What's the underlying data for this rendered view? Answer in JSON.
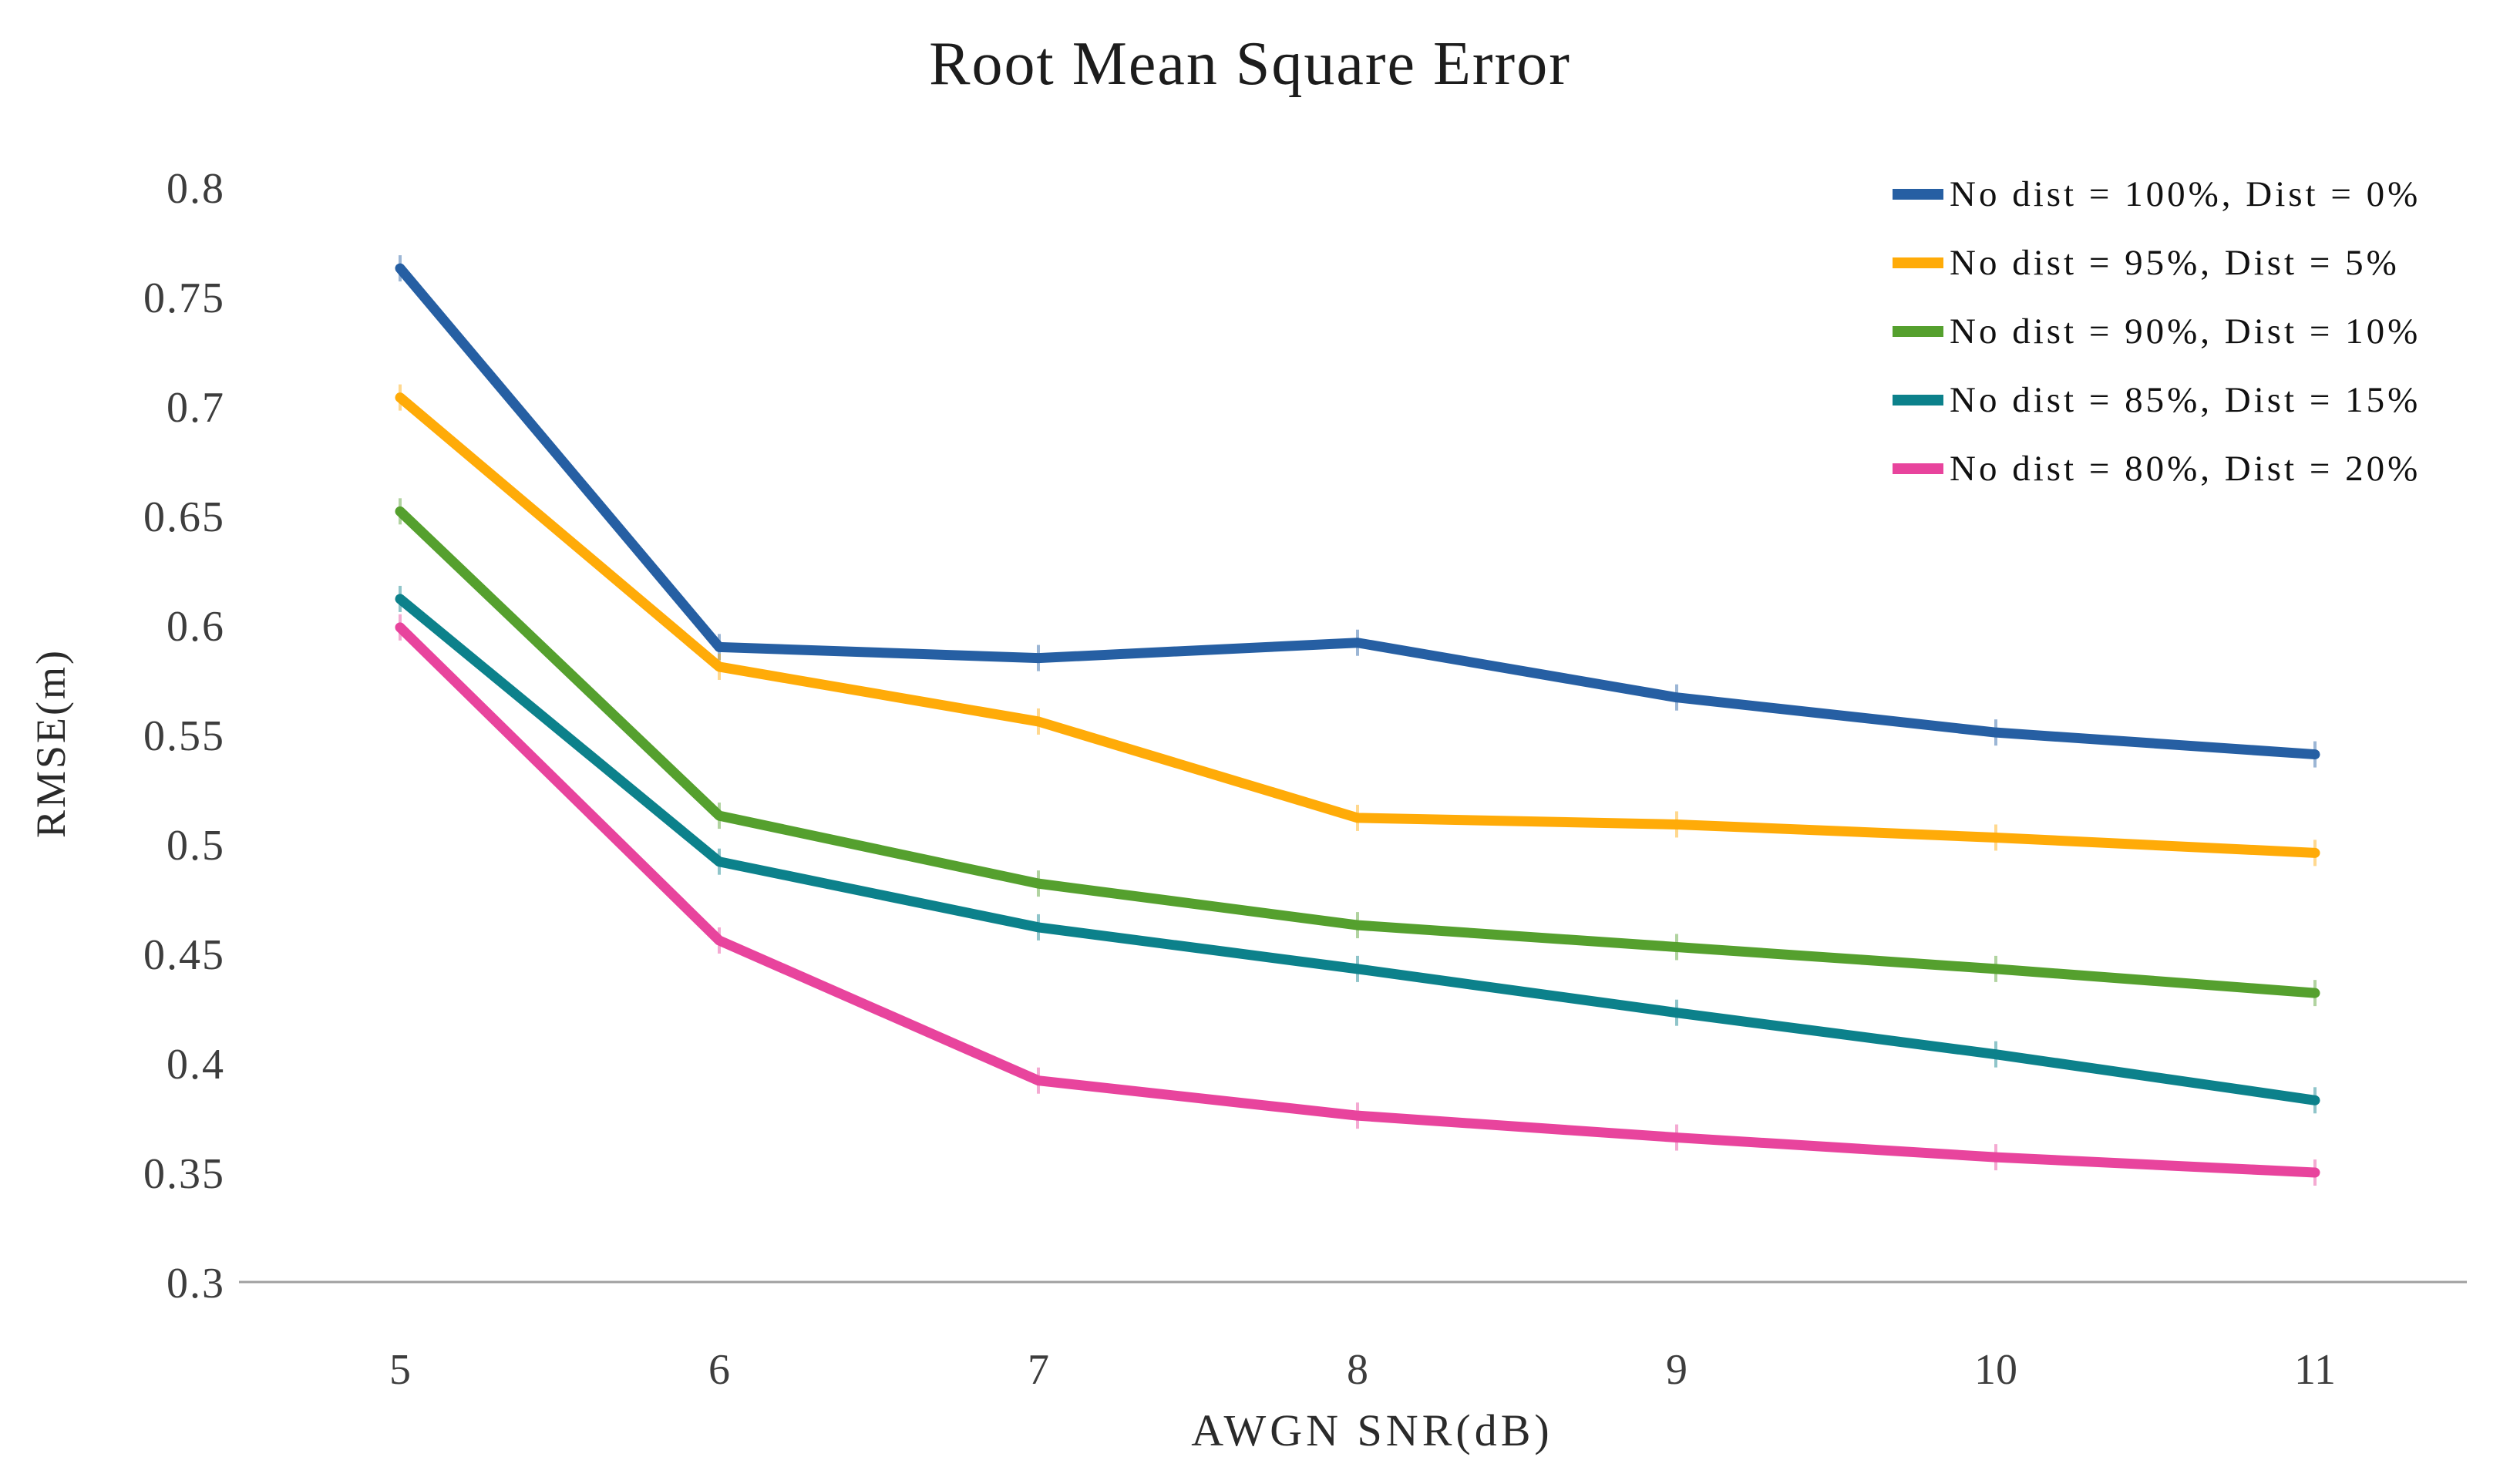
{
  "title": "Root Mean Square Error",
  "chart_data": {
    "type": "line",
    "title": "Root Mean Square Error",
    "xlabel": "AWGN SNR(dB)",
    "ylabel": "RMSE(m)",
    "x": [
      5,
      6,
      7,
      8,
      9,
      10,
      11
    ],
    "x_tick_labels": [
      "5",
      "6",
      "7",
      "8",
      "9",
      "10",
      "11"
    ],
    "y_tick_labels": [
      "0.8",
      "0.75",
      "0.7",
      "0.65",
      "0.6",
      "0.55",
      "0.5",
      "0.45",
      "0.4",
      "0.35",
      "0.3"
    ],
    "xlim": [
      5,
      11
    ],
    "ylim": [
      0.3,
      0.8
    ],
    "grid": false,
    "legend_position": "top-right",
    "axis_line_color": "#a0a0a0",
    "tick_label_color": "#3d3d3d",
    "series": [
      {
        "name": "No dist = 100%, Dist = 0%",
        "color": "#265FA3",
        "values": [
          0.763,
          0.59,
          0.585,
          0.592,
          0.567,
          0.551,
          0.541
        ]
      },
      {
        "name": "No dist = 95%, Dist = 5%",
        "color": "#FFAB08",
        "values": [
          0.704,
          0.581,
          0.556,
          0.512,
          0.509,
          0.503,
          0.496
        ]
      },
      {
        "name": "No dist = 90%, Dist = 10%",
        "color": "#55A02E",
        "values": [
          0.652,
          0.513,
          0.482,
          0.463,
          0.453,
          0.443,
          0.432
        ]
      },
      {
        "name": "No dist = 85%, Dist = 15%",
        "color": "#0C818B",
        "values": [
          0.612,
          0.492,
          0.462,
          0.443,
          0.423,
          0.404,
          0.383
        ]
      },
      {
        "name": "No dist = 80%, Dist = 20%",
        "color": "#E8449D",
        "values": [
          0.599,
          0.456,
          0.392,
          0.376,
          0.366,
          0.357,
          0.35
        ]
      }
    ]
  }
}
